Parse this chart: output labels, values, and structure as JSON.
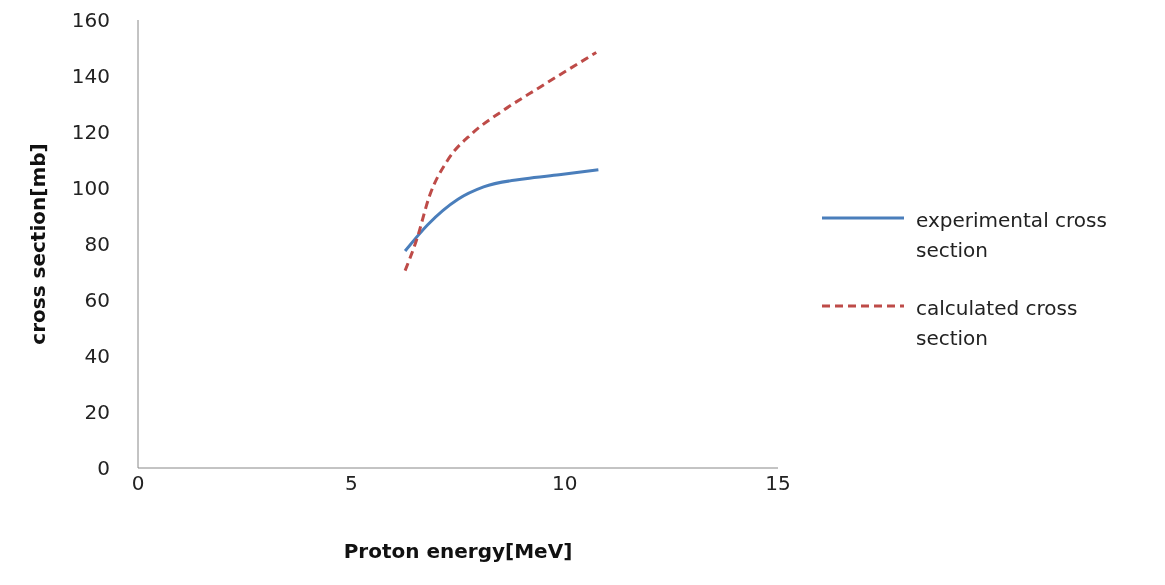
{
  "chart_data": {
    "type": "line",
    "xlabel": "Proton energy[MeV]",
    "ylabel": "cross section[mb]",
    "xlim": [
      0,
      15
    ],
    "xticks": [
      0,
      5,
      10,
      15
    ],
    "ylim": [
      0,
      160
    ],
    "yticks": [
      0,
      20,
      40,
      60,
      80,
      100,
      120,
      140,
      160
    ],
    "grid": false,
    "legend": "right",
    "marker": "none",
    "series": [
      {
        "name": "experimental cross section",
        "color": "#4a7ebb",
        "line_style": "solid",
        "x": [
          6.26,
          6.79,
          7.5,
          8.1,
          9.08,
          9.87,
          10.79
        ],
        "values": [
          77.5,
          86.9,
          96,
          100.4,
          103.3,
          104.7,
          106.5
        ]
      },
      {
        "name": "calculated cross section",
        "color": "#be4b48",
        "line_style": "dashed",
        "x": [
          6.26,
          6.53,
          6.84,
          7.26,
          7.84,
          8.55,
          9.42,
          10.74
        ],
        "values": [
          70.5,
          81.5,
          97.5,
          110,
          119.6,
          127.6,
          136,
          148.4
        ]
      }
    ]
  }
}
